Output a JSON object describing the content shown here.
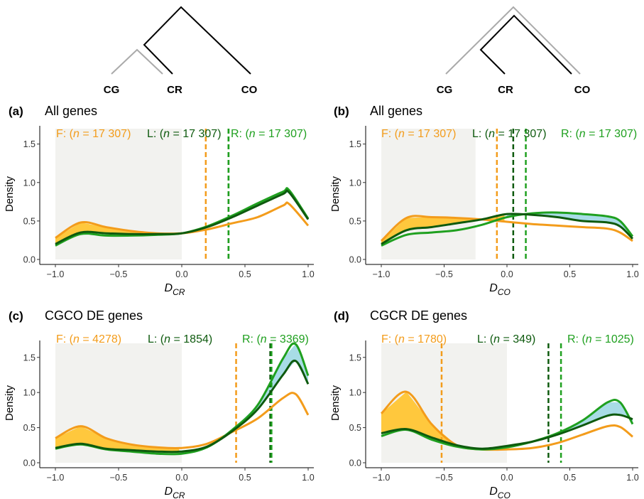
{
  "trees": [
    {
      "tips": [
        "CG",
        "CR",
        "CO"
      ],
      "colors": {
        "gray": "#aaaaaa",
        "black": "#000000"
      }
    },
    {
      "tips": [
        "CG",
        "CR",
        "CO"
      ],
      "colors": {
        "gray": "#aaaaaa",
        "black": "#000000"
      }
    }
  ],
  "colors": {
    "F": "#f39c1b",
    "L": "#0e5a0e",
    "R": "#1fa01f",
    "fill_F": "#ffc83d",
    "fill_R": "#a8dce6",
    "shade": "#f2f2ef"
  },
  "chart_data": [
    {
      "type": "area",
      "letter": "(a)",
      "title": "All genes",
      "xlabel_main": "D",
      "xlabel_sub": "CR",
      "ylabel": "Density",
      "xlim": [
        -1.0,
        1.0
      ],
      "ylim": [
        0,
        1.7
      ],
      "xticks": [
        "−1.0",
        "−0.5",
        "0.0",
        "0.5",
        "1.0"
      ],
      "yticks": [
        "0.0",
        "0.5",
        "1.0",
        "1.5"
      ],
      "shade_x": [
        -1.0,
        0.0
      ],
      "x": [
        -1.0,
        -0.8,
        -0.6,
        -0.4,
        -0.2,
        0.0,
        0.2,
        0.4,
        0.6,
        0.8,
        0.85,
        1.0
      ],
      "series": [
        {
          "key": "F",
          "label_pre": "F: (",
          "label_n": "n",
          "label_post": " = 17 307)",
          "mean": 0.19,
          "values": [
            0.28,
            0.48,
            0.42,
            0.37,
            0.34,
            0.34,
            0.39,
            0.47,
            0.55,
            0.7,
            0.72,
            0.44
          ]
        },
        {
          "key": "L",
          "label_pre": "L: (",
          "label_n": "n",
          "label_post": " = 17 307)",
          "mean": 0.37,
          "values": [
            0.2,
            0.35,
            0.34,
            0.33,
            0.33,
            0.34,
            0.42,
            0.55,
            0.7,
            0.85,
            0.87,
            0.52
          ]
        },
        {
          "key": "R",
          "label_pre": "R: (",
          "label_n": "n",
          "label_post": " = 17 307)",
          "mean": 0.37,
          "values": [
            0.18,
            0.33,
            0.31,
            0.31,
            0.32,
            0.34,
            0.43,
            0.57,
            0.73,
            0.88,
            0.9,
            0.53
          ]
        }
      ],
      "fill_between": [
        {
          "from": "L",
          "to": "F",
          "x": [
            -1.0,
            -0.02
          ],
          "color": "fill_F"
        },
        {
          "from": "L",
          "to": "R",
          "x": [
            0.0,
            1.0
          ],
          "color": "fill_R"
        }
      ]
    },
    {
      "type": "area",
      "letter": "(b)",
      "title": "All genes",
      "xlabel_main": "D",
      "xlabel_sub": "CO",
      "ylabel": "Density",
      "xlim": [
        -1.0,
        1.0
      ],
      "ylim": [
        0,
        1.7
      ],
      "xticks": [
        "−1.0",
        "−0.5",
        "0.0",
        "0.5",
        "1.0"
      ],
      "yticks": [
        "0.0",
        "0.5",
        "1.0",
        "1.5"
      ],
      "shade_x": [
        -1.0,
        -0.25
      ],
      "x": [
        -1.0,
        -0.8,
        -0.6,
        -0.4,
        -0.2,
        0.0,
        0.2,
        0.4,
        0.6,
        0.8,
        0.9,
        1.0
      ],
      "series": [
        {
          "key": "F",
          "label_pre": "F: (",
          "label_n": "n",
          "label_post": " = 17 307)",
          "mean": -0.08,
          "values": [
            0.24,
            0.54,
            0.55,
            0.54,
            0.52,
            0.49,
            0.46,
            0.44,
            0.42,
            0.4,
            0.35,
            0.24
          ]
        },
        {
          "key": "L",
          "label_pre": "L: (",
          "label_n": "n",
          "label_post": " = 17 307)",
          "mean": 0.05,
          "values": [
            0.2,
            0.38,
            0.42,
            0.47,
            0.52,
            0.59,
            0.58,
            0.55,
            0.5,
            0.48,
            0.43,
            0.27
          ]
        },
        {
          "key": "R",
          "label_pre": "R: (",
          "label_n": "n",
          "label_post": " = 17 307)",
          "mean": 0.15,
          "values": [
            0.18,
            0.32,
            0.35,
            0.38,
            0.45,
            0.55,
            0.6,
            0.61,
            0.59,
            0.56,
            0.5,
            0.3
          ]
        }
      ],
      "fill_between": [
        {
          "from": "L",
          "to": "F",
          "x": [
            -1.0,
            -0.02
          ],
          "color": "fill_F"
        },
        {
          "from": "L",
          "to": "R",
          "x": [
            0.0,
            1.0
          ],
          "color": "fill_R"
        }
      ]
    },
    {
      "type": "area",
      "letter": "(c)",
      "title": "CGCO DE genes",
      "xlabel_main": "D",
      "xlabel_sub": "CR",
      "ylabel": "Density",
      "xlim": [
        -1.0,
        1.0
      ],
      "ylim": [
        0,
        1.7
      ],
      "xticks": [
        "−1.0",
        "−0.5",
        "0.0",
        "0.5",
        "1.0"
      ],
      "yticks": [
        "0.0",
        "0.5",
        "1.0",
        "1.5"
      ],
      "shade_x": [
        -1.0,
        0.0
      ],
      "x": [
        -1.0,
        -0.8,
        -0.6,
        -0.4,
        -0.2,
        0.0,
        0.2,
        0.4,
        0.6,
        0.8,
        0.9,
        1.0
      ],
      "series": [
        {
          "key": "F",
          "label_pre": "F: (",
          "label_n": "n",
          "label_post": " = 4278)",
          "mean": 0.43,
          "values": [
            0.35,
            0.52,
            0.35,
            0.26,
            0.22,
            0.21,
            0.27,
            0.44,
            0.63,
            0.92,
            0.98,
            0.68
          ]
        },
        {
          "key": "L",
          "label_pre": "L: (",
          "label_n": "n",
          "label_post": " = 1854)",
          "mean": 0.7,
          "values": [
            0.21,
            0.27,
            0.2,
            0.18,
            0.16,
            0.16,
            0.23,
            0.45,
            0.76,
            1.25,
            1.45,
            1.12
          ]
        },
        {
          "key": "R",
          "label_pre": "R: (",
          "label_n": "n",
          "label_post": " = 3369)",
          "mean": 0.71,
          "values": [
            0.2,
            0.26,
            0.19,
            0.16,
            0.13,
            0.13,
            0.22,
            0.47,
            0.82,
            1.48,
            1.69,
            1.24
          ]
        }
      ],
      "fill_between": [
        {
          "from": "L",
          "to": "F",
          "x": [
            -1.0,
            -0.02
          ],
          "color": "fill_F"
        },
        {
          "from": "L",
          "to": "R",
          "x": [
            0.0,
            1.0
          ],
          "color": "fill_R"
        }
      ]
    },
    {
      "type": "area",
      "letter": "(d)",
      "title": "CGCR DE genes",
      "xlabel_main": "D",
      "xlabel_sub": "CO",
      "ylabel": "Density",
      "xlim": [
        -1.0,
        1.0
      ],
      "ylim": [
        0,
        1.7
      ],
      "xticks": [
        "−1.0",
        "−0.5",
        "0.0",
        "0.5",
        "1.0"
      ],
      "yticks": [
        "0.0",
        "0.5",
        "1.0",
        "1.5"
      ],
      "shade_x": [
        -1.0,
        0.0
      ],
      "x": [
        -1.0,
        -0.8,
        -0.6,
        -0.4,
        -0.2,
        0.0,
        0.2,
        0.4,
        0.6,
        0.8,
        0.9,
        1.0
      ],
      "series": [
        {
          "key": "F",
          "label_pre": "F: (",
          "label_n": "n",
          "label_post": " = 1780)",
          "mean": -0.52,
          "values": [
            0.7,
            1.01,
            0.55,
            0.25,
            0.19,
            0.19,
            0.21,
            0.28,
            0.4,
            0.52,
            0.51,
            0.37
          ]
        },
        {
          "key": "L",
          "label_pre": "L: (",
          "label_n": "n",
          "label_post": " = 349)",
          "mean": 0.33,
          "values": [
            0.42,
            0.48,
            0.36,
            0.25,
            0.2,
            0.24,
            0.3,
            0.4,
            0.53,
            0.67,
            0.68,
            0.62
          ]
        },
        {
          "key": "R",
          "label_pre": "R: (",
          "label_n": "n",
          "label_post": " = 1025)",
          "mean": 0.43,
          "values": [
            0.38,
            0.47,
            0.33,
            0.23,
            0.19,
            0.22,
            0.3,
            0.42,
            0.6,
            0.86,
            0.86,
            0.55
          ]
        }
      ],
      "fill_between": [
        {
          "from": "L",
          "to": "F",
          "x": [
            -1.0,
            -0.02
          ],
          "color": "fill_F"
        },
        {
          "from": "L",
          "to": "R",
          "x": [
            0.0,
            1.0
          ],
          "color": "fill_R"
        }
      ]
    }
  ]
}
